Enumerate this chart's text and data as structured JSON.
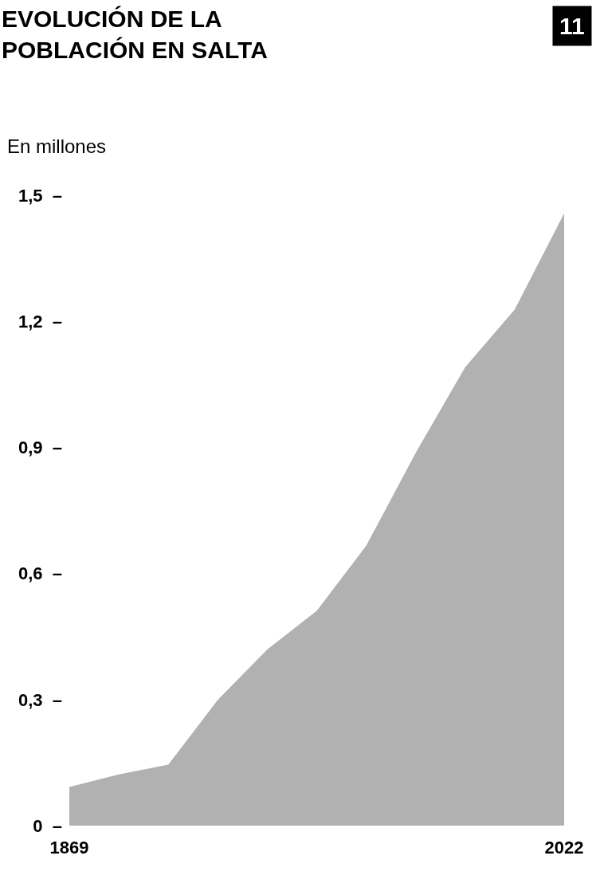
{
  "chart_data": {
    "type": "area",
    "title": "EVOLUCIÓN DE LA\nPOBLACIÓN EN SALTA",
    "ylabel": "En millones",
    "annotations": [
      "11"
    ],
    "categories": [
      "1869",
      null,
      null,
      null,
      null,
      null,
      null,
      null,
      null,
      null,
      "2022"
    ],
    "series": [
      {
        "color": "#b1b1b1",
        "values": [
          0.092,
          0.122,
          0.145,
          0.299,
          0.419,
          0.511,
          0.666,
          0.887,
          1.091,
          1.228,
          1.457
        ]
      }
    ],
    "ylim": [
      0,
      1.5
    ],
    "yticks": [
      {
        "value": 0,
        "label": "0  –"
      },
      {
        "value": 0.3,
        "label": "0,3  –"
      },
      {
        "value": 0.6,
        "label": "0,6  –"
      },
      {
        "value": 0.9,
        "label": "0,9  –"
      },
      {
        "value": 1.2,
        "label": "1,2  –"
      },
      {
        "value": 1.5,
        "label": "1,5  –"
      }
    ]
  }
}
